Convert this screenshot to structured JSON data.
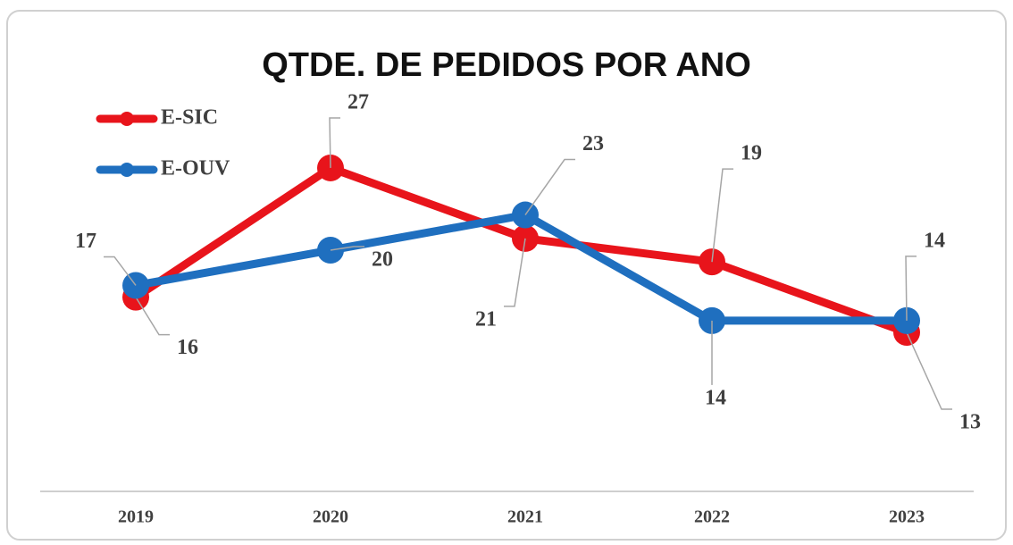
{
  "chart_data": {
    "type": "line",
    "title": "QTDE. DE PEDIDOS POR ANO",
    "categories": [
      "2019",
      "2020",
      "2021",
      "2022",
      "2023"
    ],
    "series": [
      {
        "name": "E-SIC",
        "color": "#e8141b",
        "values": [
          16,
          27,
          21,
          19,
          13
        ]
      },
      {
        "name": "E-OUV",
        "color": "#1f6fbf",
        "values": [
          17,
          20,
          23,
          14,
          14
        ]
      }
    ],
    "legend": "upper left"
  }
}
